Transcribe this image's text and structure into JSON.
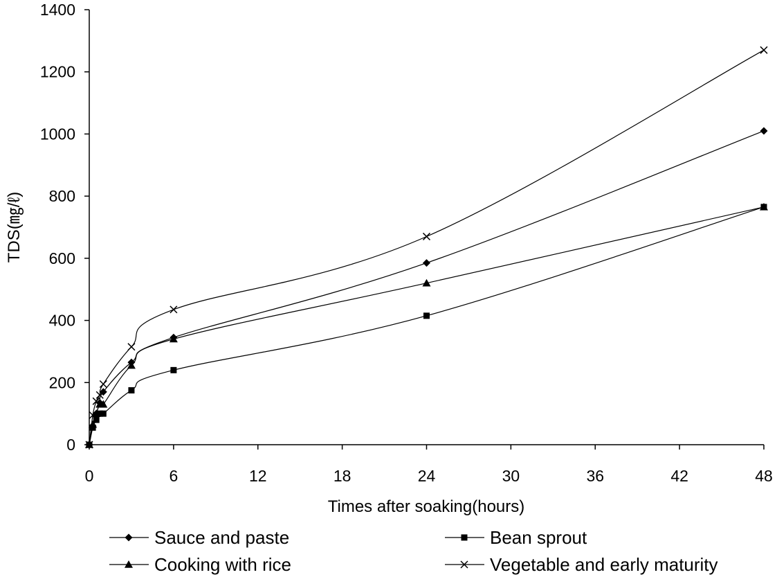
{
  "chart_data": {
    "type": "line",
    "xlabel": "Times after soaking(hours)",
    "ylabel": "TDS(㎎/ℓ)",
    "xlim": [
      0,
      48
    ],
    "ylim": [
      0,
      1400
    ],
    "xticks": [
      "0",
      "6",
      "12",
      "18",
      "24",
      "30",
      "36",
      "42",
      "48"
    ],
    "yticks": [
      "0",
      "200",
      "400",
      "600",
      "800",
      "1000",
      "1200",
      "1400"
    ],
    "x": [
      0,
      0.25,
      0.5,
      0.75,
      1,
      3,
      6,
      24,
      48
    ],
    "grid": false,
    "legend_position": "bottom",
    "series": [
      {
        "name": "Sauce and paste",
        "marker": "diamond",
        "values": [
          0,
          60,
          100,
          135,
          170,
          265,
          345,
          585,
          1010
        ]
      },
      {
        "name": "Bean sprout",
        "marker": "square",
        "values": [
          0,
          55,
          80,
          100,
          100,
          175,
          240,
          415,
          765
        ]
      },
      {
        "name": "Cooking with rice",
        "marker": "triangle",
        "values": [
          0,
          65,
          100,
          130,
          130,
          255,
          340,
          520,
          765
        ]
      },
      {
        "name": "Vegetable and early maturity",
        "marker": "x",
        "values": [
          0,
          95,
          140,
          160,
          195,
          315,
          435,
          670,
          1270
        ]
      }
    ]
  }
}
